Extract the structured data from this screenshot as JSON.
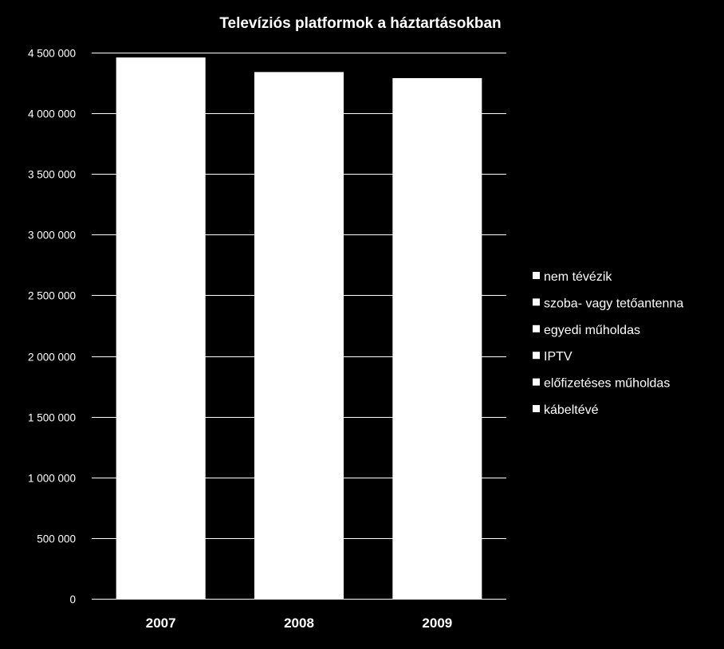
{
  "chart_data": {
    "type": "bar",
    "stacked": true,
    "title": "Televíziós platformok a háztartásokban",
    "xlabel": "",
    "ylabel": "",
    "categories": [
      "2007",
      "2008",
      "2009"
    ],
    "ylim": [
      0,
      4500000
    ],
    "yticks": [
      0,
      500000,
      1000000,
      1500000,
      2000000,
      2500000,
      3000000,
      3500000,
      4000000,
      4500000
    ],
    "ytick_labels": [
      "0",
      "500 000",
      "1 000 000",
      "1 500 000",
      "2 000 000",
      "2 500 000",
      "3 000 000",
      "3 500 000",
      "4 000 000",
      "4 500 000"
    ],
    "totals": [
      4460000,
      4340000,
      4290000
    ],
    "grid": true,
    "legend_position": "right",
    "legend": [
      "nem tévézik",
      "szoba- vagy tetőantenna",
      "egyedi műholdas",
      "IPTV",
      "előfizetéses műholdas",
      "kábeltévé"
    ],
    "colors": {
      "background": "#000000",
      "bar": "#ffffff",
      "grid": "#ffffff",
      "text": "#ffffff"
    }
  }
}
